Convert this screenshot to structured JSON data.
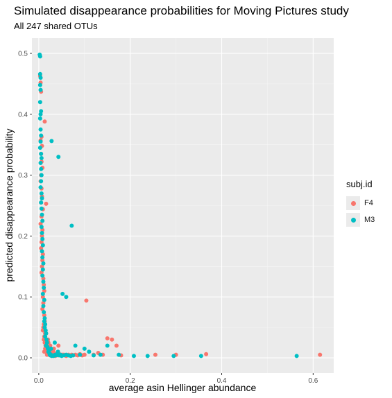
{
  "chart_data": {
    "type": "scatter",
    "title": "Simulated disappearance probabilities for Moving Pictures study",
    "subtitle": "All 247 shared OTUs",
    "xlabel": "average asin Hellinger abundance",
    "ylabel": "predicted disappearance probability",
    "xlim": [
      -0.015,
      0.645
    ],
    "ylim": [
      -0.025,
      0.525
    ],
    "x_ticks": [
      0.0,
      0.2,
      0.4,
      0.6
    ],
    "x_tick_labels": [
      "0.0",
      "0.2",
      "0.4",
      "0.6"
    ],
    "y_ticks": [
      0.0,
      0.1,
      0.2,
      0.3,
      0.4,
      0.5
    ],
    "y_tick_labels": [
      "0.0",
      "0.1",
      "0.2",
      "0.3",
      "0.4",
      "0.5"
    ],
    "grid": true,
    "legend_position": "right",
    "legend_title": "subj.id",
    "series": [
      {
        "name": "F4",
        "color": "#F8766D",
        "x": [
          0.003,
          0.004,
          0.005,
          0.006,
          0.004,
          0.007,
          0.005,
          0.006,
          0.008,
          0.005,
          0.004,
          0.006,
          0.007,
          0.005,
          0.009,
          0.006,
          0.004,
          0.008,
          0.007,
          0.006,
          0.005,
          0.009,
          0.008,
          0.007,
          0.006,
          0.01,
          0.011,
          0.012,
          0.009,
          0.01,
          0.008,
          0.012,
          0.013,
          0.011,
          0.01,
          0.009,
          0.014,
          0.012,
          0.011,
          0.013,
          0.015,
          0.014,
          0.016,
          0.012,
          0.018,
          0.017,
          0.015,
          0.019,
          0.02,
          0.016,
          0.022,
          0.021,
          0.018,
          0.025,
          0.024,
          0.023,
          0.02,
          0.027,
          0.028,
          0.03,
          0.025,
          0.032,
          0.035,
          0.038,
          0.033,
          0.036,
          0.04,
          0.042,
          0.045,
          0.048,
          0.043,
          0.05,
          0.052,
          0.055,
          0.058,
          0.06,
          0.062,
          0.065,
          0.068,
          0.072,
          0.075,
          0.08,
          0.085,
          0.09,
          0.095,
          0.1,
          0.104,
          0.12,
          0.13,
          0.14,
          0.15,
          0.16,
          0.17,
          0.18,
          0.255,
          0.3,
          0.366,
          0.615,
          0.016,
          0.013
        ],
        "y": [
          0.463,
          0.452,
          0.437,
          0.363,
          0.357,
          0.348,
          0.335,
          0.322,
          0.312,
          0.3,
          0.29,
          0.278,
          0.265,
          0.255,
          0.244,
          0.232,
          0.22,
          0.21,
          0.2,
          0.19,
          0.18,
          0.17,
          0.16,
          0.15,
          0.14,
          0.13,
          0.12,
          0.11,
          0.1,
          0.09,
          0.08,
          0.07,
          0.06,
          0.055,
          0.05,
          0.045,
          0.04,
          0.035,
          0.03,
          0.025,
          0.02,
          0.015,
          0.012,
          0.01,
          0.008,
          0.03,
          0.02,
          0.015,
          0.01,
          0.04,
          0.008,
          0.025,
          0.005,
          0.02,
          0.01,
          0.005,
          0.03,
          0.012,
          0.008,
          0.005,
          0.004,
          0.01,
          0.004,
          0.006,
          0.015,
          0.003,
          0.005,
          0.004,
          0.006,
          0.005,
          0.02,
          0.004,
          0.005,
          0.005,
          0.004,
          0.003,
          0.004,
          0.005,
          0.004,
          0.005,
          0.004,
          0.005,
          0.004,
          0.006,
          0.004,
          0.005,
          0.094,
          0.005,
          0.008,
          0.005,
          0.032,
          0.03,
          0.02,
          0.004,
          0.005,
          0.005,
          0.006,
          0.005,
          0.253,
          0.388
        ]
      },
      {
        "name": "M3",
        "color": "#00BFC4",
        "x": [
          0.002,
          0.003,
          0.003,
          0.004,
          0.003,
          0.004,
          0.003,
          0.005,
          0.004,
          0.003,
          0.004,
          0.005,
          0.004,
          0.003,
          0.005,
          0.006,
          0.004,
          0.005,
          0.006,
          0.005,
          0.004,
          0.006,
          0.007,
          0.005,
          0.006,
          0.007,
          0.008,
          0.006,
          0.007,
          0.008,
          0.009,
          0.007,
          0.008,
          0.01,
          0.009,
          0.008,
          0.01,
          0.011,
          0.009,
          0.012,
          0.01,
          0.011,
          0.013,
          0.012,
          0.014,
          0.013,
          0.015,
          0.016,
          0.014,
          0.017,
          0.018,
          0.016,
          0.019,
          0.02,
          0.022,
          0.021,
          0.023,
          0.025,
          0.024,
          0.026,
          0.028,
          0.03,
          0.027,
          0.032,
          0.034,
          0.036,
          0.035,
          0.038,
          0.04,
          0.042,
          0.045,
          0.048,
          0.05,
          0.055,
          0.06,
          0.065,
          0.07,
          0.075,
          0.08,
          0.09,
          0.1,
          0.11,
          0.12,
          0.135,
          0.15,
          0.175,
          0.208,
          0.238,
          0.295,
          0.355,
          0.564,
          0.028,
          0.043,
          0.072,
          0.052,
          0.06
        ],
        "y": [
          0.498,
          0.495,
          0.466,
          0.46,
          0.448,
          0.44,
          0.42,
          0.405,
          0.4,
          0.393,
          0.375,
          0.365,
          0.355,
          0.345,
          0.335,
          0.328,
          0.32,
          0.31,
          0.3,
          0.29,
          0.28,
          0.27,
          0.262,
          0.255,
          0.245,
          0.235,
          0.225,
          0.215,
          0.205,
          0.195,
          0.185,
          0.175,
          0.165,
          0.155,
          0.145,
          0.135,
          0.125,
          0.115,
          0.105,
          0.095,
          0.085,
          0.075,
          0.065,
          0.06,
          0.055,
          0.05,
          0.045,
          0.04,
          0.035,
          0.03,
          0.025,
          0.02,
          0.018,
          0.015,
          0.012,
          0.01,
          0.008,
          0.006,
          0.005,
          0.004,
          0.003,
          0.004,
          0.015,
          0.003,
          0.004,
          0.005,
          0.025,
          0.004,
          0.006,
          0.01,
          0.004,
          0.005,
          0.003,
          0.004,
          0.005,
          0.004,
          0.003,
          0.004,
          0.02,
          0.005,
          0.015,
          0.01,
          0.004,
          0.005,
          0.02,
          0.005,
          0.003,
          0.003,
          0.003,
          0.003,
          0.003,
          0.356,
          0.33,
          0.217,
          0.105,
          0.1
        ]
      }
    ]
  }
}
